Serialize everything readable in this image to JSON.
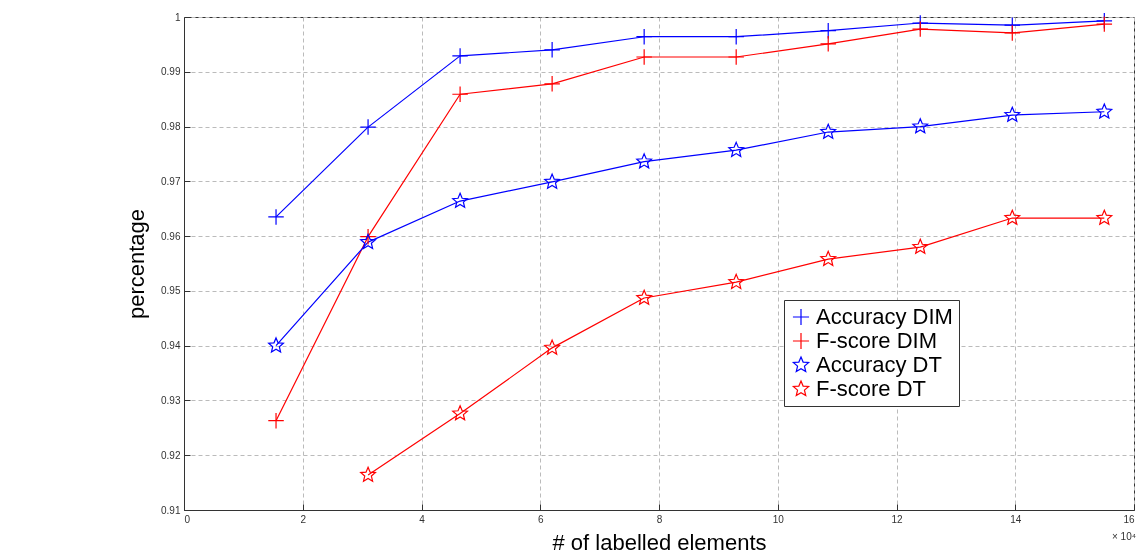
{
  "chart_data": {
    "type": "line",
    "xlabel": "# of labelled elements",
    "ylabel": "percentage",
    "annotations": [
      "× 10⁴"
    ],
    "x": [
      1.55,
      3.1,
      4.65,
      6.2,
      7.75,
      9.3,
      10.85,
      12.4,
      13.95,
      15.5
    ],
    "xlim": [
      0,
      16
    ],
    "xticks": [
      0,
      2,
      4,
      6,
      8,
      10,
      12,
      14,
      16
    ],
    "ylim": [
      0.91,
      1
    ],
    "yticks": [
      0.91,
      0.92,
      0.93,
      0.94,
      0.95,
      0.96,
      0.97,
      0.98,
      0.99,
      1
    ],
    "grid": true,
    "legend": "right",
    "line_style": "solid",
    "series": [
      {
        "name": "Accuracy DIM",
        "color": "#0000ff",
        "marker": "cross",
        "values": [
          0.9635,
          0.9799,
          0.9929,
          0.994,
          0.9964,
          0.9964,
          0.9975,
          0.9989,
          0.9985,
          0.9993
        ]
      },
      {
        "name": "F-score DIM",
        "color": "#ff0000",
        "marker": "cross",
        "values": [
          0.9263,
          0.9599,
          0.9859,
          0.9878,
          0.9927,
          0.9927,
          0.9951,
          0.9978,
          0.9971,
          0.9987
        ]
      },
      {
        "name": "Accuracy DT",
        "color": "#0000ff",
        "marker": "star",
        "values": [
          0.94,
          0.9589,
          0.9664,
          0.9699,
          0.9736,
          0.9757,
          0.979,
          0.98,
          0.9821,
          0.9827
        ]
      },
      {
        "name": "F-score DT",
        "color": "#ff0000",
        "marker": "star",
        "values": [
          null,
          0.9164,
          0.9276,
          0.9396,
          0.9487,
          0.9516,
          0.9558,
          0.958,
          0.9633,
          0.9633
        ]
      }
    ]
  }
}
